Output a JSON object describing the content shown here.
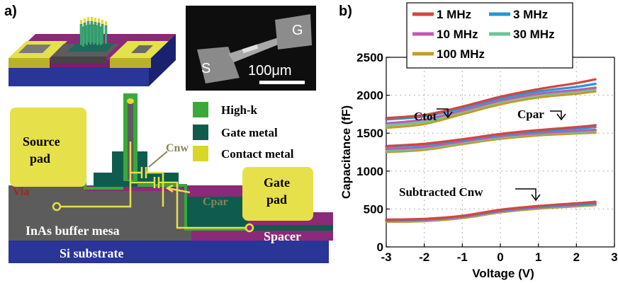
{
  "panel_a": {
    "label": "a)",
    "sem": {
      "s_label": "S",
      "g_label": "G",
      "scalebar": "100μm"
    },
    "legend": [
      {
        "label": "High-k",
        "color": "#3aa83a"
      },
      {
        "label": "Gate metal",
        "color": "#0f5c4f"
      },
      {
        "label": "Contact metal",
        "color": "#d9d62a"
      }
    ],
    "schematic": {
      "source_pad": "Source\npad",
      "gate_pad": "Gate\npad",
      "via": "Via",
      "cnw": "Cnw",
      "cpar": "Cpar",
      "buffer": "InAs buffer mesa",
      "spacer": "Spacer",
      "substrate": "Si substrate"
    }
  },
  "panel_b": {
    "label": "b)",
    "annotations": {
      "ctot": "Ctot",
      "cpar": "Cpar",
      "cnw": "Subtracted Cnw"
    }
  },
  "chart_data": {
    "type": "line",
    "xlabel": "Voltage (V)",
    "ylabel": "Capacitance (fF)",
    "xlim": [
      -3,
      3
    ],
    "ylim": [
      0,
      2500
    ],
    "xticks": [
      -3,
      -2,
      -1,
      0,
      1,
      2,
      3
    ],
    "yticks": [
      0,
      500,
      1000,
      1500,
      2000,
      2500
    ],
    "grid": true,
    "legend_position": "top",
    "series": [
      {
        "name": "1 MHz",
        "color": "#d6453d",
        "ctot": {
          "x": [
            -3,
            -2,
            -1,
            0,
            1,
            2,
            2.5
          ],
          "y": [
            1700,
            1740,
            1850,
            1980,
            2080,
            2160,
            2210
          ]
        },
        "cpar": {
          "x": [
            -3,
            -2,
            -1,
            0,
            1,
            2,
            2.5
          ],
          "y": [
            1330,
            1360,
            1420,
            1490,
            1540,
            1580,
            1605
          ]
        },
        "cnw": {
          "x": [
            -3,
            -2,
            -1,
            0,
            1,
            2,
            2.5
          ],
          "y": [
            360,
            370,
            410,
            490,
            540,
            575,
            595
          ]
        }
      },
      {
        "name": "3 MHz",
        "color": "#1d9ad6",
        "ctot": {
          "x": [
            -3,
            -2,
            -1,
            0,
            1,
            2,
            2.5
          ],
          "y": [
            1680,
            1720,
            1830,
            1960,
            2050,
            2110,
            2150
          ]
        },
        "cpar": {
          "x": [
            -3,
            -2,
            -1,
            0,
            1,
            2,
            2.5
          ],
          "y": [
            1320,
            1350,
            1410,
            1480,
            1525,
            1560,
            1580
          ]
        },
        "cnw": {
          "x": [
            -3,
            -2,
            -1,
            0,
            1,
            2,
            2.5
          ],
          "y": [
            355,
            365,
            405,
            480,
            530,
            560,
            575
          ]
        }
      },
      {
        "name": "10 MHz",
        "color": "#c05bb0",
        "ctot": {
          "x": [
            -3,
            -2,
            -1,
            0,
            1,
            2,
            2.5
          ],
          "y": [
            1630,
            1680,
            1800,
            1930,
            2020,
            2070,
            2100
          ]
        },
        "cpar": {
          "x": [
            -3,
            -2,
            -1,
            0,
            1,
            2,
            2.5
          ],
          "y": [
            1290,
            1320,
            1390,
            1460,
            1500,
            1530,
            1545
          ]
        },
        "cnw": {
          "x": [
            -3,
            -2,
            -1,
            0,
            1,
            2,
            2.5
          ],
          "y": [
            345,
            355,
            395,
            470,
            520,
            550,
            565
          ]
        }
      },
      {
        "name": "30 MHz",
        "color": "#6dc59a",
        "ctot": {
          "x": [
            -3,
            -2,
            -1,
            0,
            1,
            2,
            2.5
          ],
          "y": [
            1600,
            1650,
            1780,
            1910,
            2000,
            2050,
            2080
          ]
        },
        "cpar": {
          "x": [
            -3,
            -2,
            -1,
            0,
            1,
            2,
            2.5
          ],
          "y": [
            1270,
            1300,
            1375,
            1445,
            1490,
            1515,
            1530
          ]
        },
        "cnw": {
          "x": [
            -3,
            -2,
            -1,
            0,
            1,
            2,
            2.5
          ],
          "y": [
            340,
            350,
            390,
            465,
            515,
            545,
            560
          ]
        }
      },
      {
        "name": "100 MHz",
        "color": "#c49a2a",
        "ctot": {
          "x": [
            -3,
            -2,
            -1,
            0,
            1,
            2,
            2.5
          ],
          "y": [
            1570,
            1620,
            1750,
            1880,
            1970,
            2020,
            2050
          ]
        },
        "cpar": {
          "x": [
            -3,
            -2,
            -1,
            0,
            1,
            2,
            2.5
          ],
          "y": [
            1250,
            1280,
            1355,
            1425,
            1470,
            1495,
            1505
          ]
        },
        "cnw": {
          "x": [
            -3,
            -2,
            -1,
            0,
            1,
            2,
            2.5
          ],
          "y": [
            330,
            340,
            380,
            455,
            505,
            535,
            550
          ]
        }
      }
    ]
  }
}
